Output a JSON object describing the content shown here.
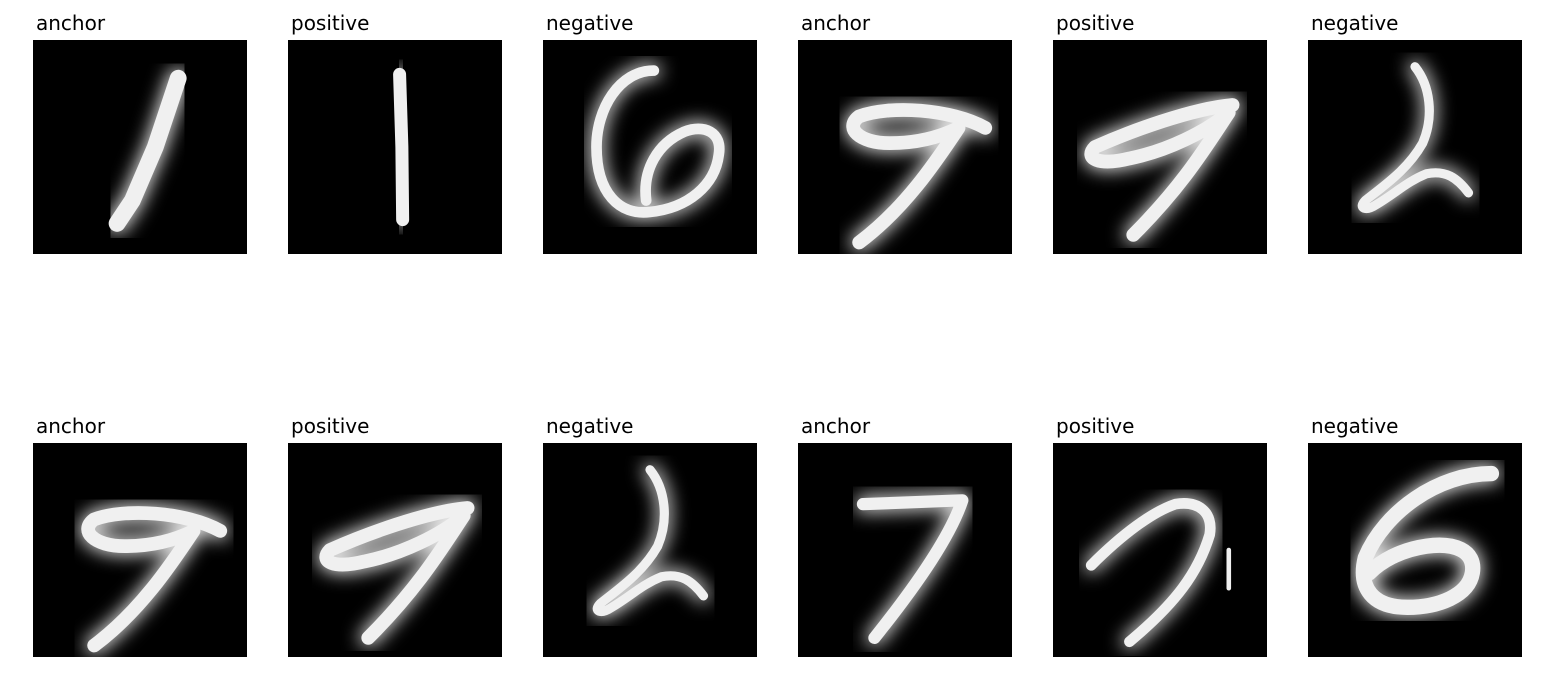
{
  "grid": {
    "rows": [
      [
        {
          "label": "anchor",
          "digit": "1a"
        },
        {
          "label": "positive",
          "digit": "1b"
        },
        {
          "label": "negative",
          "digit": "6a"
        },
        {
          "label": "anchor",
          "digit": "9a"
        },
        {
          "label": "positive",
          "digit": "9b"
        },
        {
          "label": "negative",
          "digit": "2a"
        }
      ],
      [
        {
          "label": "anchor",
          "digit": "9a"
        },
        {
          "label": "positive",
          "digit": "9b"
        },
        {
          "label": "negative",
          "digit": "2a"
        },
        {
          "label": "anchor",
          "digit": "7a"
        },
        {
          "label": "positive",
          "digit": "7b"
        },
        {
          "label": "negative",
          "digit": "6b"
        }
      ]
    ]
  },
  "colors": {
    "background": "#000000",
    "stroke": "#f0f0f0",
    "label": "#000000"
  }
}
